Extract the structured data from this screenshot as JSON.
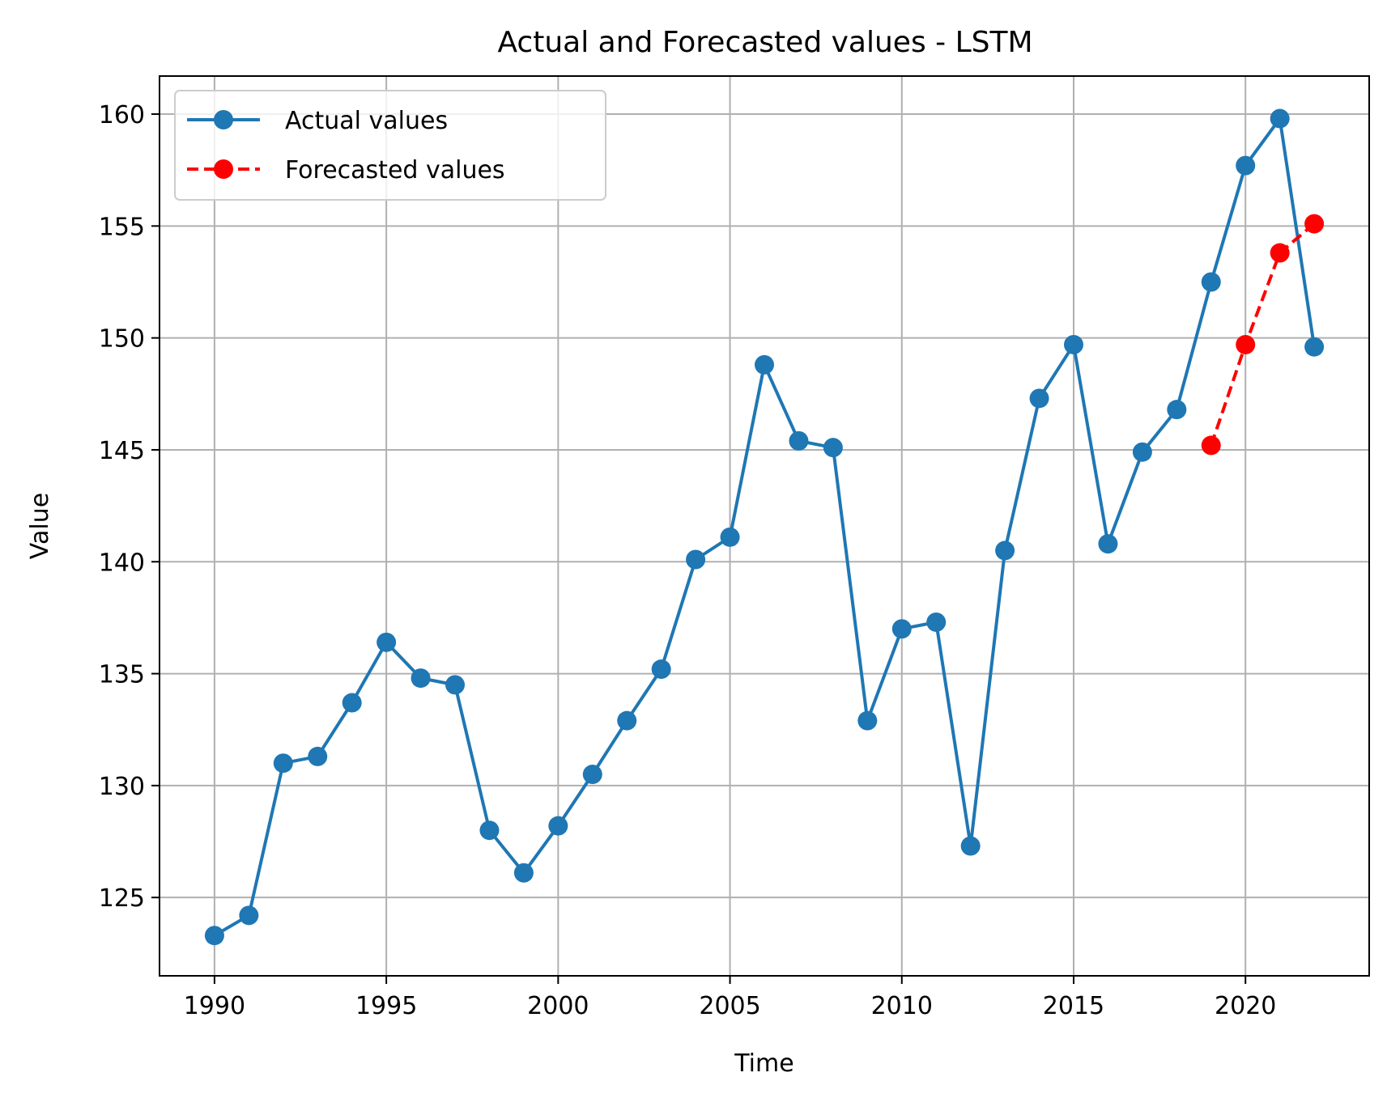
{
  "chart_data": {
    "type": "line",
    "title": "Actual and Forecasted values - LSTM",
    "xlabel": "Time",
    "ylabel": "Value",
    "xlim": [
      1988.4,
      2023.6
    ],
    "ylim": [
      121.5,
      161.7
    ],
    "xticks": [
      1990,
      1995,
      2000,
      2005,
      2010,
      2015,
      2020
    ],
    "yticks": [
      125,
      130,
      135,
      140,
      145,
      150,
      155,
      160
    ],
    "grid": true,
    "legend_position": "upper-left",
    "series": [
      {
        "name": "Actual values",
        "color": "#1f77b4",
        "style": "solid",
        "x": [
          1990,
          1991,
          1992,
          1993,
          1994,
          1995,
          1996,
          1997,
          1998,
          1999,
          2000,
          2001,
          2002,
          2003,
          2004,
          2005,
          2006,
          2007,
          2008,
          2009,
          2010,
          2011,
          2012,
          2013,
          2014,
          2015,
          2016,
          2017,
          2018,
          2019,
          2020,
          2021,
          2022
        ],
        "y": [
          123.3,
          124.2,
          131.0,
          131.3,
          133.7,
          136.4,
          134.8,
          134.5,
          128.0,
          126.1,
          128.2,
          130.5,
          132.9,
          135.2,
          140.1,
          141.1,
          148.8,
          145.4,
          145.1,
          132.9,
          137.0,
          137.3,
          127.3,
          140.5,
          147.3,
          149.7,
          140.8,
          144.9,
          146.8,
          152.5,
          157.7,
          159.8,
          149.6
        ]
      },
      {
        "name": "Forecasted values",
        "color": "#ff0000",
        "style": "dashed",
        "x": [
          2019,
          2020,
          2021,
          2022
        ],
        "y": [
          145.2,
          149.7,
          153.8,
          155.1
        ]
      }
    ]
  }
}
